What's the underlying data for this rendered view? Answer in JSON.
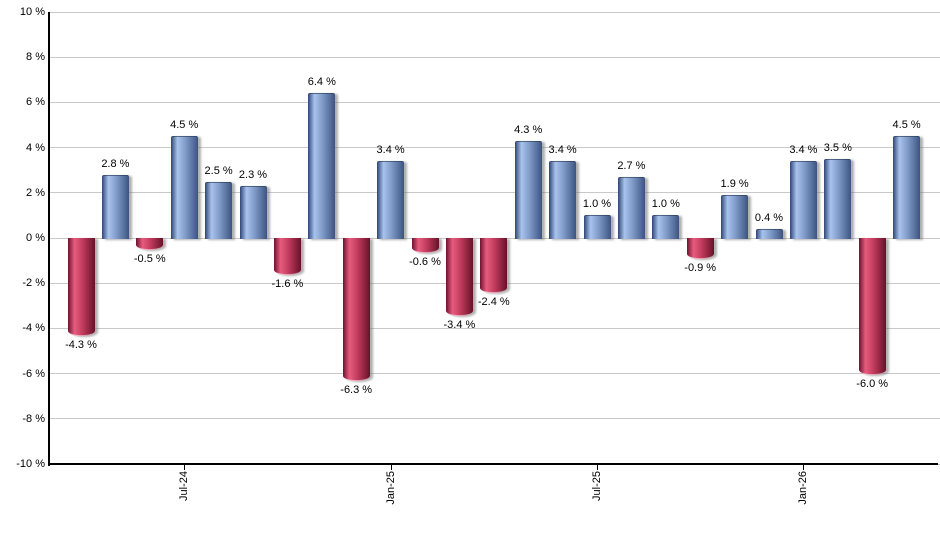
{
  "chart_data": {
    "type": "bar",
    "title": "",
    "xlabel": "",
    "ylabel": "",
    "ylim": [
      -10,
      10
    ],
    "y_tick_step": 2,
    "grid": "horizontal",
    "legend": "none",
    "y_tick_labels": [
      "10 %",
      "8 %",
      "6 %",
      "4 %",
      "2 %",
      "0 %",
      "-2 %",
      "-4 %",
      "-6 %",
      "-8 %",
      "-10 %"
    ],
    "values": [
      -4.3,
      2.8,
      -0.5,
      4.5,
      2.5,
      2.3,
      -1.6,
      6.4,
      -6.3,
      3.4,
      -0.6,
      -3.4,
      -2.4,
      4.3,
      3.4,
      1.0,
      2.7,
      1.0,
      -0.9,
      1.9,
      0.4,
      3.4,
      3.5,
      -6.0,
      4.5
    ],
    "bar_labels": [
      "-4.3 %",
      "2.8 %",
      "-0.5 %",
      "4.5 %",
      "2.5 %",
      "2.3 %",
      "-1.6 %",
      "6.4 %",
      "-6.3 %",
      "3.4 %",
      "-0.6 %",
      "-3.4 %",
      "-2.4 %",
      "4.3 %",
      "3.4 %",
      "1.0 %",
      "2.7 %",
      "1.0 %",
      "-0.9 %",
      "1.9 %",
      "0.4 %",
      "3.4 %",
      "3.5 %",
      "-6.0 %",
      "4.5 %"
    ],
    "x_ticks": [
      {
        "label": "Jul-24",
        "bar_index": 3
      },
      {
        "label": "Jan-25",
        "bar_index": 9
      },
      {
        "label": "Jul-25",
        "bar_index": 15
      },
      {
        "label": "Jan-26",
        "bar_index": 21
      }
    ],
    "colors": {
      "positive_dark": "#2e4576",
      "positive_highlight": "#a9c3ee",
      "positive_mid": "#7e99c7",
      "positive_edge": "#3d5480",
      "negative_dark": "#6e1130",
      "negative_highlight": "#e85c7e",
      "negative_mid": "#c03a5d",
      "negative_edge": "#671129",
      "gridline": "#c9c9c9",
      "axis": "#000000",
      "text": "#000000"
    }
  }
}
